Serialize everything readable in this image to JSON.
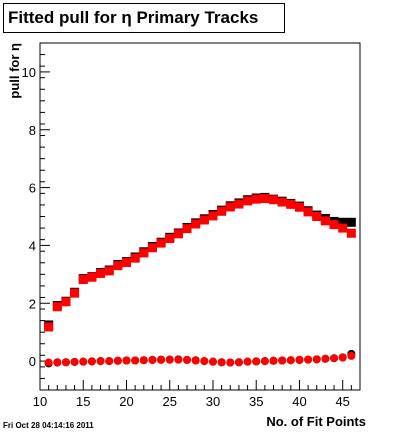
{
  "chart_data": {
    "type": "scatter",
    "title_parts": {
      "before": "Fitted pull for ",
      "symbol": "η",
      "after": " Primary Tracks"
    },
    "xlabel": "No. of Fit Points",
    "ylabel": "pull for η",
    "xlim": [
      10,
      47
    ],
    "ylim": [
      -1,
      11
    ],
    "x_ticks": [
      10,
      15,
      20,
      25,
      30,
      35,
      40,
      45
    ],
    "y_ticks": [
      0,
      2,
      4,
      6,
      8,
      10
    ],
    "grid": false,
    "legend": "none",
    "series": [
      {
        "color": "#000000",
        "x": [
          11,
          12,
          13,
          14,
          15,
          16,
          17,
          18,
          19,
          20,
          21,
          22,
          23,
          24,
          25,
          26,
          27,
          28,
          29,
          30,
          31,
          32,
          33,
          34,
          35,
          36,
          37,
          38,
          39,
          40,
          41,
          42,
          43,
          44,
          45,
          46
        ],
        "width": [
          1.25,
          1.92,
          2.07,
          2.38,
          2.85,
          2.92,
          3.06,
          3.15,
          3.34,
          3.44,
          3.6,
          3.78,
          3.96,
          4.11,
          4.28,
          4.43,
          4.62,
          4.78,
          4.92,
          5.07,
          5.22,
          5.37,
          5.47,
          5.58,
          5.64,
          5.66,
          5.6,
          5.53,
          5.45,
          5.36,
          5.2,
          5.05,
          4.93,
          4.83,
          4.8,
          4.8
        ],
        "mean": [
          -0.08,
          -0.05,
          -0.04,
          -0.03,
          -0.02,
          -0.01,
          0,
          0,
          0.01,
          0.02,
          0.02,
          0.03,
          0.04,
          0.05,
          0.05,
          0.06,
          0.04,
          0.03,
          0,
          -0.02,
          -0.04,
          -0.05,
          -0.04,
          -0.02,
          -0.01,
          0,
          0.01,
          0.02,
          0.03,
          0.04,
          0.05,
          0.06,
          0.08,
          0.1,
          0.13,
          0.25
        ]
      },
      {
        "color": "#ff0000",
        "x": [
          11,
          12,
          13,
          14,
          15,
          16,
          17,
          18,
          19,
          20,
          21,
          22,
          23,
          24,
          25,
          26,
          27,
          28,
          29,
          30,
          31,
          32,
          33,
          34,
          35,
          36,
          37,
          38,
          39,
          40,
          41,
          42,
          43,
          44,
          45,
          46
        ],
        "width": [
          1.18,
          1.88,
          2.05,
          2.35,
          2.82,
          2.9,
          3.03,
          3.12,
          3.3,
          3.41,
          3.56,
          3.74,
          3.92,
          4.08,
          4.24,
          4.4,
          4.58,
          4.74,
          4.88,
          5.02,
          5.18,
          5.33,
          5.43,
          5.54,
          5.6,
          5.62,
          5.58,
          5.5,
          5.42,
          5.32,
          5.16,
          5.0,
          4.85,
          4.72,
          4.6,
          4.42
        ],
        "mean": [
          -0.05,
          -0.04,
          -0.04,
          -0.03,
          -0.02,
          -0.01,
          0,
          0,
          0.01,
          0.02,
          0.02,
          0.03,
          0.04,
          0.04,
          0.05,
          0.05,
          0.04,
          0.02,
          0,
          -0.02,
          -0.04,
          -0.05,
          -0.04,
          -0.02,
          -0.01,
          0,
          0.01,
          0.02,
          0.03,
          0.04,
          0.05,
          0.06,
          0.08,
          0.1,
          0.12,
          0.18
        ]
      }
    ]
  },
  "footer": {
    "timestamp": "Fri Oct 28 04:14:16 2011"
  }
}
